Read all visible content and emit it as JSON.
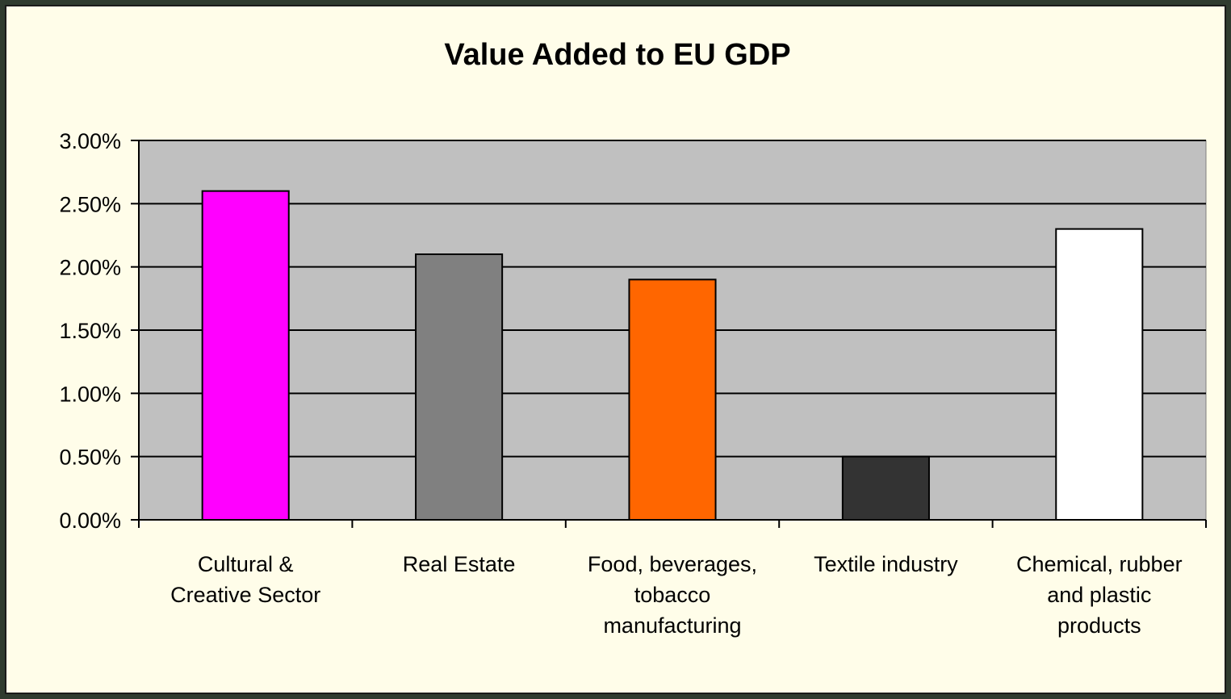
{
  "chart_data": {
    "type": "bar",
    "title": "Value Added to EU GDP",
    "xlabel": "",
    "ylabel": "",
    "categories": [
      [
        "Cultural &",
        "Creative Sector"
      ],
      [
        "Real Estate"
      ],
      [
        "Food, beverages,",
        "tobacco",
        "manufacturing"
      ],
      [
        "Textile industry"
      ],
      [
        "Chemical, rubber",
        "and plastic",
        "products"
      ]
    ],
    "values": [
      2.6,
      2.1,
      1.9,
      0.5,
      2.3
    ],
    "value_unit": "%",
    "bar_colors": [
      "#ff00ff",
      "#808080",
      "#ff6600",
      "#333333",
      "#ffffff"
    ],
    "ylim": [
      0,
      3
    ],
    "yticks": [
      {
        "value": 0,
        "label": "0.00%"
      },
      {
        "value": 0.5,
        "label": "0.50%"
      },
      {
        "value": 1,
        "label": "1.00%"
      },
      {
        "value": 1.5,
        "label": "1.50%"
      },
      {
        "value": 2,
        "label": "2.00%"
      },
      {
        "value": 2.5,
        "label": "2.50%"
      },
      {
        "value": 3,
        "label": "3.00%"
      }
    ],
    "grid": true,
    "legend": "none",
    "plot_background": "#c0c0c0"
  }
}
